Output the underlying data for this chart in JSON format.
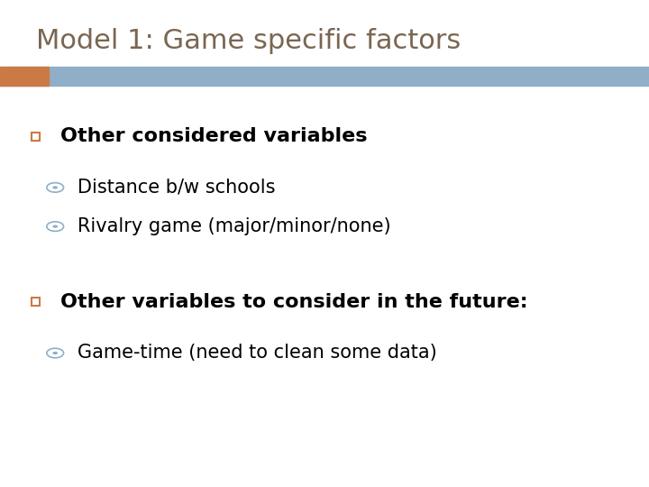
{
  "title": "Model 1: Game specific factors",
  "title_color": "#7a6652",
  "title_fontsize": 22,
  "background_color": "#ffffff",
  "header_bar_color": "#8fafc8",
  "header_bar_left_color": "#cc7a45",
  "bullet1_text": "Other considered variables",
  "bullet1_fontsize": 16,
  "sub_bullet1a": "Distance b/w schools",
  "sub_bullet1b": "Rivalry game (major/minor/none)",
  "sub_bullet_fontsize": 15,
  "bullet2_text": "Other variables to consider in the future:",
  "bullet2_fontsize": 16,
  "sub_bullet2a": "Game-time (need to clean some data)",
  "sub_bullet2_fontsize": 15,
  "square_bullet_color": "#cc7a45",
  "circle_bullet_color": "#8fafc8"
}
